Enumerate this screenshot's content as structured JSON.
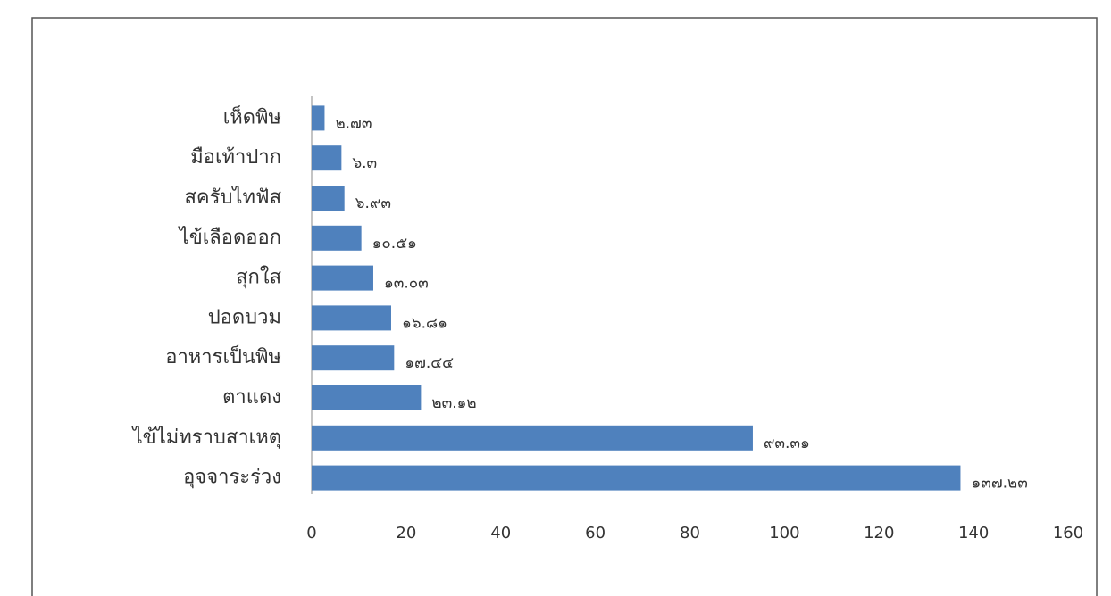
{
  "chart_data": {
    "type": "bar",
    "orientation": "horizontal",
    "categories": [
      "เห็ดพิษ",
      "มือเท้าปาก",
      "สครับไทฟัส",
      "ไข้เลือดออก",
      "สุกใส",
      "ปอดบวม",
      "อาหารเป็นพิษ",
      "ตาแดง",
      "ไข้ไม่ทราบสาเหตุ",
      "อุจจาระร่วง"
    ],
    "values": [
      2.73,
      6.3,
      6.93,
      10.51,
      13.03,
      16.81,
      17.44,
      23.12,
      93.31,
      137.23
    ],
    "value_labels": [
      "๒.๗๓",
      "๖.๓",
      "๖.๙๓",
      "๑๐.๕๑",
      "๑๓.๐๓",
      "๑๖.๘๑",
      "๑๗.๔๔",
      "๒๓.๑๒",
      "๙๓.๓๑",
      "๑๓๗.๒๓"
    ],
    "color": "#4f81bd",
    "xlim": [
      0,
      160
    ],
    "xticks": [
      0,
      20,
      40,
      60,
      80,
      100,
      120,
      140,
      160
    ],
    "grid": false
  }
}
